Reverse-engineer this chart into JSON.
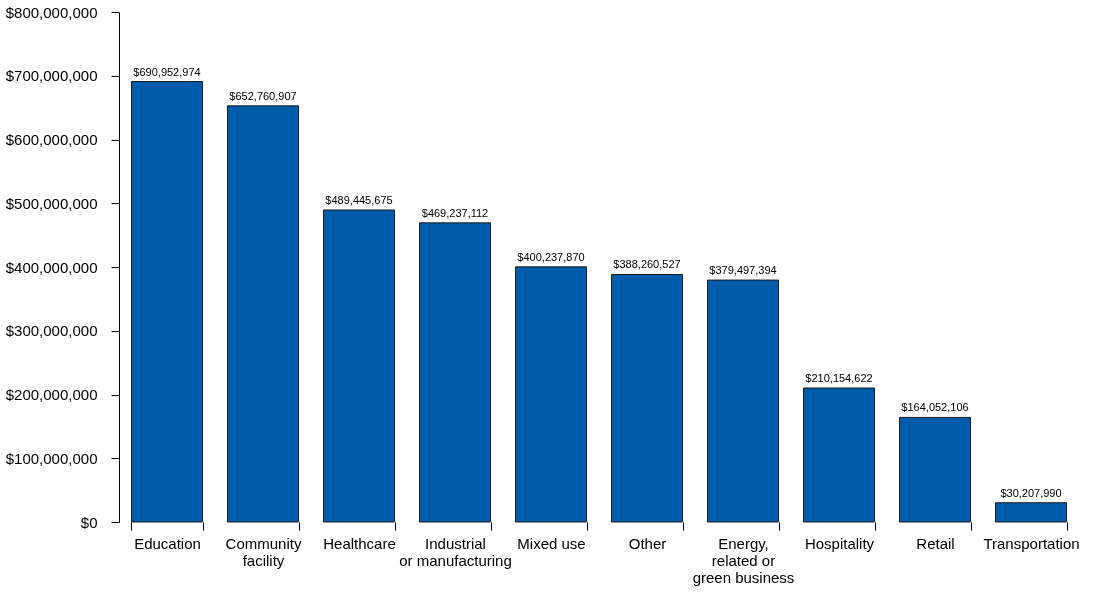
{
  "chart_data": {
    "type": "bar",
    "categories": [
      "Education",
      "Community\nfacility",
      "Healthcare",
      "Industrial\nor manufacturing",
      "Mixed use",
      "Other",
      "Energy,\nrelated or\ngreen business",
      "Hospitality",
      "Retail",
      "Transportation"
    ],
    "values": [
      690952974,
      652760907,
      489445675,
      469237112,
      400237870,
      388260527,
      379497394,
      210154622,
      164052106,
      30207990
    ],
    "value_labels": [
      "$690,952,974",
      "$652,760,907",
      "$489,445,675",
      "$469,237,112",
      "$400,237,870",
      "$388,260,527",
      "$379,497,394",
      "$210,154,622",
      "$164,052,106",
      "$30,207,990"
    ],
    "color": "#005bab",
    "ylim": [
      0,
      800000000
    ],
    "yticks": [
      {
        "value": 0,
        "label": "$0"
      },
      {
        "value": 100000000,
        "label": "$100,000,000"
      },
      {
        "value": 200000000,
        "label": "$200,000,000"
      },
      {
        "value": 300000000,
        "label": "$300,000,000"
      },
      {
        "value": 400000000,
        "label": "$400,000,000"
      },
      {
        "value": 500000000,
        "label": "$500,000,000"
      },
      {
        "value": 600000000,
        "label": "$600,000,000"
      },
      {
        "value": 700000000,
        "label": "$700,000,000"
      },
      {
        "value": 800000000,
        "label": "$800,000,000"
      }
    ],
    "grid": false
  }
}
